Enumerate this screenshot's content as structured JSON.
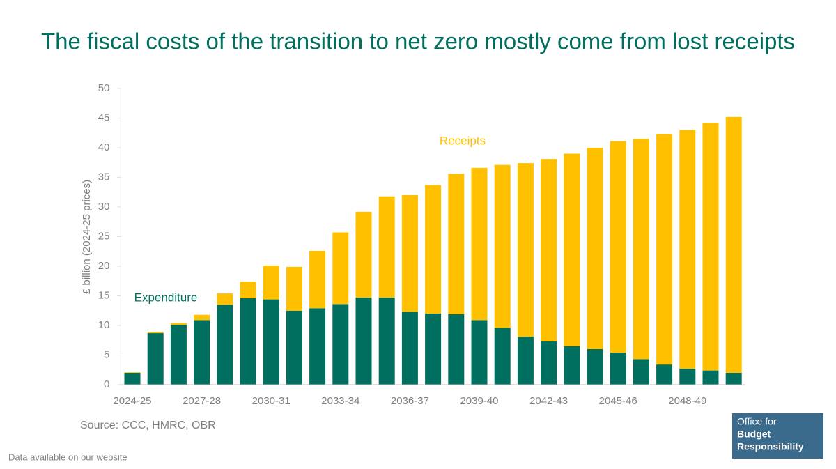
{
  "chart_data": {
    "type": "stacked_bar",
    "title": "The fiscal costs of the transition to net zero mostly come from lost receipts",
    "y_label": "£ billion (2024-25 prices)",
    "categories": [
      "2024-25",
      null,
      null,
      "2027-28",
      null,
      null,
      "2030-31",
      null,
      null,
      "2033-34",
      null,
      null,
      "2036-37",
      null,
      null,
      "2039-40",
      null,
      null,
      "2042-43",
      null,
      null,
      "2045-46",
      null,
      null,
      "2048-49",
      null,
      null
    ],
    "series": [
      {
        "name": "Expenditure",
        "color": "#006f5f",
        "values": [
          2.0,
          8.7,
          10.1,
          10.9,
          13.5,
          14.6,
          14.4,
          12.5,
          12.9,
          13.6,
          14.7,
          14.7,
          12.3,
          12.0,
          11.9,
          10.9,
          9.6,
          8.1,
          7.3,
          6.5,
          6.0,
          5.4,
          4.3,
          3.4,
          2.7,
          2.4,
          2.0
        ]
      },
      {
        "name": "Receipts",
        "color": "#ffc000",
        "values": [
          0.1,
          0.2,
          0.3,
          0.9,
          1.9,
          2.8,
          5.7,
          7.4,
          9.7,
          12.1,
          14.5,
          17.1,
          19.7,
          21.7,
          23.7,
          25.7,
          27.5,
          29.3,
          30.8,
          32.5,
          34.0,
          35.7,
          37.2,
          38.9,
          40.3,
          41.8,
          43.2
        ]
      }
    ],
    "ylim": [
      0,
      50
    ],
    "yticks": [
      0,
      5,
      10,
      15,
      20,
      25,
      30,
      35,
      40,
      45,
      50
    ],
    "source": "Source: CCC, HMRC, OBR"
  },
  "footer": "Data available on our website",
  "logo": {
    "line1": "Office for",
    "line2": "Budget",
    "line3": "Responsibility"
  }
}
